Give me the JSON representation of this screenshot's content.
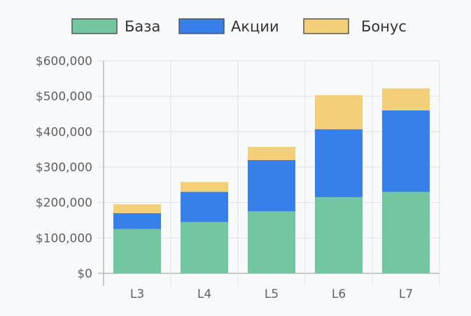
{
  "chart_data": {
    "type": "bar",
    "stacked": true,
    "title": "",
    "xlabel": "",
    "ylabel": "",
    "categories": [
      "L3",
      "L4",
      "L5",
      "L6",
      "L7"
    ],
    "series": [
      {
        "name": "База",
        "color": "#72c7a0",
        "values": [
          125000,
          145000,
          175000,
          215000,
          230000
        ]
      },
      {
        "name": "Акции",
        "color": "#3780e9",
        "values": [
          45000,
          85000,
          145000,
          192000,
          230000
        ]
      },
      {
        "name": "Бонус",
        "color": "#f3d077",
        "values": [
          25000,
          28000,
          37000,
          96000,
          62000
        ]
      }
    ],
    "ylim": [
      0,
      600000
    ],
    "yticks": [
      0,
      100000,
      200000,
      300000,
      400000,
      500000,
      600000
    ],
    "ytick_labels": [
      "$0",
      "$100,000",
      "$200,000",
      "$300,000",
      "$400,000",
      "$500,000",
      "$600,000"
    ],
    "legend_position": "top-center",
    "grid": true
  }
}
